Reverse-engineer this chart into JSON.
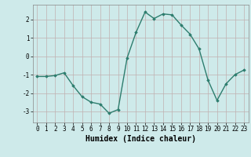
{
  "x": [
    0,
    1,
    2,
    3,
    4,
    5,
    6,
    7,
    8,
    9,
    10,
    11,
    12,
    13,
    14,
    15,
    16,
    17,
    18,
    19,
    20,
    21,
    22,
    23
  ],
  "y": [
    -1.1,
    -1.1,
    -1.05,
    -0.9,
    -1.6,
    -2.2,
    -2.5,
    -2.6,
    -3.1,
    -2.9,
    -0.1,
    1.3,
    2.4,
    2.05,
    2.3,
    2.25,
    1.7,
    1.2,
    0.4,
    -1.3,
    -2.4,
    -1.5,
    -1.0,
    -0.75
  ],
  "line_color": "#2d7d6e",
  "marker": "D",
  "marker_size": 1.8,
  "linewidth": 1.0,
  "xlabel": "Humidex (Indice chaleur)",
  "xlim": [
    -0.5,
    23.5
  ],
  "ylim": [
    -3.6,
    2.8
  ],
  "yticks": [
    -3,
    -2,
    -1,
    0,
    1,
    2
  ],
  "xticks": [
    0,
    1,
    2,
    3,
    4,
    5,
    6,
    7,
    8,
    9,
    10,
    11,
    12,
    13,
    14,
    15,
    16,
    17,
    18,
    19,
    20,
    21,
    22,
    23
  ],
  "bg_color": "#ceeaea",
  "grid_color": "#c0b0b0",
  "xlabel_fontsize": 7,
  "tick_fontsize": 5.5
}
